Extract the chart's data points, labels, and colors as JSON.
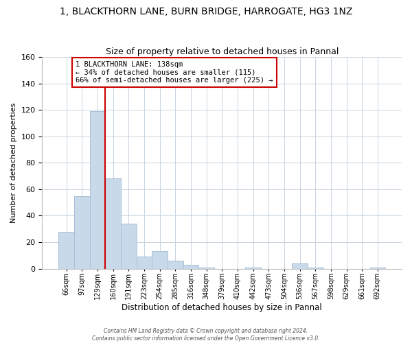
{
  "title": "1, BLACKTHORN LANE, BURN BRIDGE, HARROGATE, HG3 1NZ",
  "subtitle": "Size of property relative to detached houses in Pannal",
  "xlabel": "Distribution of detached houses by size in Pannal",
  "ylabel": "Number of detached properties",
  "bar_labels": [
    "66sqm",
    "97sqm",
    "129sqm",
    "160sqm",
    "191sqm",
    "223sqm",
    "254sqm",
    "285sqm",
    "316sqm",
    "348sqm",
    "379sqm",
    "410sqm",
    "442sqm",
    "473sqm",
    "504sqm",
    "536sqm",
    "567sqm",
    "598sqm",
    "629sqm",
    "661sqm",
    "692sqm"
  ],
  "bar_values": [
    28,
    55,
    119,
    68,
    34,
    9,
    13,
    6,
    3,
    1,
    0,
    0,
    1,
    0,
    0,
    4,
    1,
    0,
    0,
    0,
    1
  ],
  "bar_color": "#c8daea",
  "bar_edge_color": "#a8c0d8",
  "ylim": [
    0,
    160
  ],
  "yticks": [
    0,
    20,
    40,
    60,
    80,
    100,
    120,
    140,
    160
  ],
  "property_line_x": 2.5,
  "property_line_color": "#cc0000",
  "annotation_text": "1 BLACKTHORN LANE: 138sqm\n← 34% of detached houses are smaller (115)\n66% of semi-detached houses are larger (225) →",
  "annotation_box_color": "#ffffff",
  "annotation_box_edge": "#cc0000",
  "footer_line1": "Contains HM Land Registry data © Crown copyright and database right 2024.",
  "footer_line2": "Contains public sector information licensed under the Open Government Licence v3.0.",
  "bg_color": "#ffffff",
  "grid_color": "#c8d4e0"
}
